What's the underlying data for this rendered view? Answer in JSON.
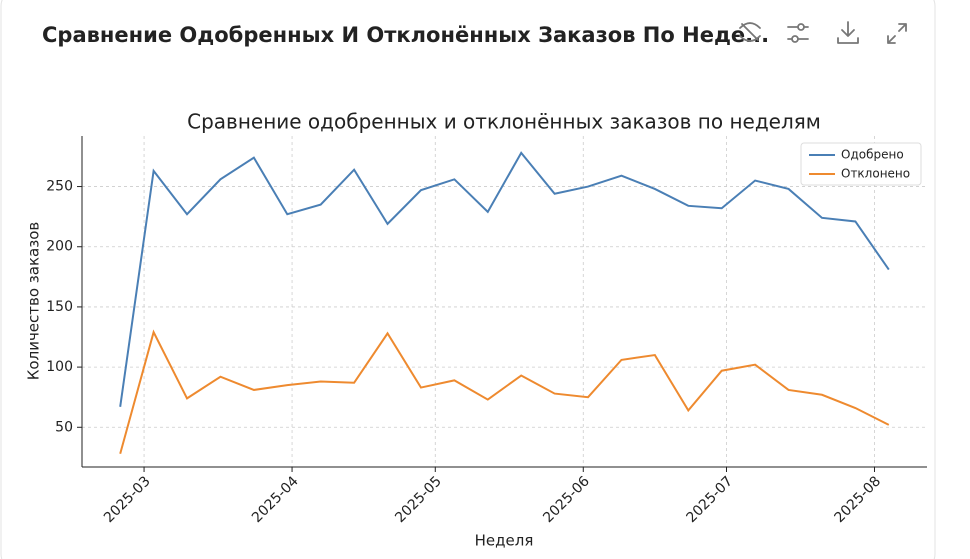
{
  "header": {
    "title": "Сравнение Одобренных И Отклонённых Заказов По Неде..."
  },
  "chart_data": {
    "type": "line",
    "title": "Сравнение одобренных и отклонённых заказов по неделям",
    "x_label": "Неделя",
    "y_label": "Количество заказов",
    "x": [
      "2025-02-24",
      "2025-03-03",
      "2025-03-10",
      "2025-03-17",
      "2025-03-24",
      "2025-03-31",
      "2025-04-07",
      "2025-04-14",
      "2025-04-21",
      "2025-04-28",
      "2025-05-05",
      "2025-05-12",
      "2025-05-19",
      "2025-05-26",
      "2025-06-02",
      "2025-06-09",
      "2025-06-16",
      "2025-06-23",
      "2025-06-30",
      "2025-07-07",
      "2025-07-14",
      "2025-07-21",
      "2025-07-28",
      "2025-08-04"
    ],
    "series": [
      {
        "name": "Одобрено",
        "color": "#4a7fb5",
        "values": [
          67,
          263,
          227,
          256,
          274,
          227,
          235,
          264,
          219,
          247,
          256,
          229,
          278,
          244,
          250,
          259,
          248,
          234,
          232,
          255,
          248,
          224,
          221,
          181
        ]
      },
      {
        "name": "Отклонено",
        "color": "#ee8a2f",
        "values": [
          28,
          129,
          74,
          92,
          81,
          85,
          88,
          87,
          128,
          83,
          89,
          73,
          93,
          78,
          75,
          106,
          110,
          64,
          97,
          102,
          81,
          77,
          66,
          52
        ]
      }
    ],
    "xlim": [
      "2025-02-16",
      "2025-08-12"
    ],
    "xticks": [
      {
        "value": "2025-03-01",
        "label": "2025-03"
      },
      {
        "value": "2025-04-01",
        "label": "2025-04"
      },
      {
        "value": "2025-05-01",
        "label": "2025-05"
      },
      {
        "value": "2025-06-01",
        "label": "2025-06"
      },
      {
        "value": "2025-07-01",
        "label": "2025-07"
      },
      {
        "value": "2025-08-01",
        "label": "2025-08"
      }
    ],
    "ylim": [
      17,
      292
    ],
    "yticks": [
      50,
      100,
      150,
      200,
      250
    ],
    "grid": true,
    "legend": "upper right"
  }
}
